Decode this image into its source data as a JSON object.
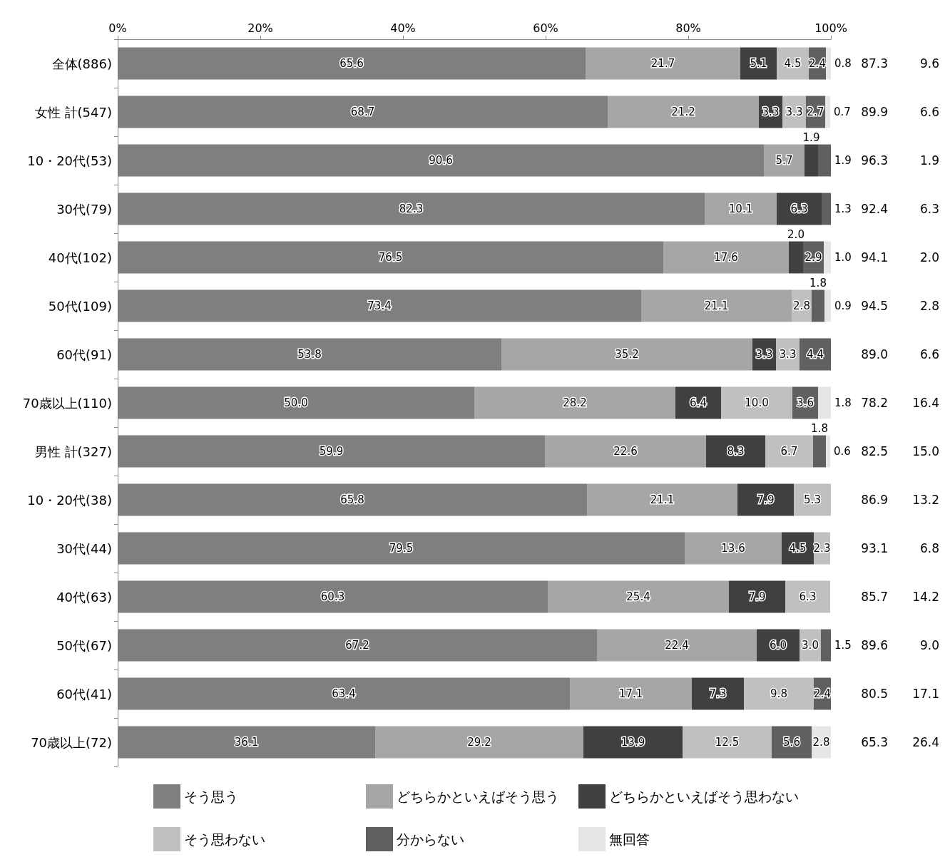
{
  "chart_data": {
    "type": "bar",
    "orientation": "horizontal",
    "stacked": true,
    "legend": "bottom",
    "grid": false,
    "categories": [
      "全体(886)",
      "女性 計(547)",
      "10・20代(53)",
      "30代(79)",
      "40代(102)",
      "50代(109)",
      "60代(91)",
      "70歳以上(110)",
      "男性 計(327)",
      "10・20代(38)",
      "30代(44)",
      "40代(63)",
      "50代(67)",
      "60代(41)",
      "70歳以上(72)"
    ],
    "xlim": [
      0,
      100
    ],
    "xticks": [
      {
        "value": 0,
        "label": "0%"
      },
      {
        "value": 20,
        "label": "20%"
      },
      {
        "value": 40,
        "label": "40%"
      },
      {
        "value": 60,
        "label": "60%"
      },
      {
        "value": 80,
        "label": "80%"
      },
      {
        "value": 100,
        "label": "100%"
      }
    ],
    "series": [
      {
        "name": "そう思う",
        "color": "#7f7f7f",
        "values": [
          65.6,
          68.7,
          90.6,
          82.3,
          76.5,
          73.4,
          53.8,
          50.0,
          59.9,
          65.8,
          79.5,
          60.3,
          67.2,
          63.4,
          36.1
        ],
        "value_labels": [
          "65.6",
          "68.7",
          "90.6",
          "82.3",
          "76.5",
          "73.4",
          "53.8",
          "50.0",
          "59.9",
          "65.8",
          "79.5",
          "60.3",
          "67.2",
          "63.4",
          "36.1"
        ]
      },
      {
        "name": "どちらかといえばそう思う",
        "color": "#a6a6a6",
        "values": [
          21.7,
          21.2,
          5.7,
          10.1,
          17.6,
          21.1,
          35.2,
          28.2,
          22.6,
          21.1,
          13.6,
          25.4,
          22.4,
          17.1,
          29.2
        ],
        "value_labels": [
          "21.7",
          "21.2",
          "5.7",
          "10.1",
          "17.6",
          "21.1",
          "35.2",
          "28.2",
          "22.6",
          "21.1",
          "13.6",
          "25.4",
          "22.4",
          "17.1",
          "29.2"
        ]
      },
      {
        "name": "どちらかといえばそう思わない",
        "color": "#404040",
        "values": [
          5.1,
          3.3,
          1.9,
          6.3,
          2.0,
          null,
          3.3,
          6.4,
          8.3,
          7.9,
          4.5,
          7.9,
          6.0,
          7.3,
          13.9
        ],
        "value_labels": [
          "5.1",
          "3.3",
          "1.9",
          "6.3",
          "2.0",
          null,
          "3.3",
          "6.4",
          "8.3",
          "7.9",
          "4.5",
          "7.9",
          "6.0",
          "7.3",
          "13.9"
        ]
      },
      {
        "name": "そう思わない",
        "color": "#c0c0c0",
        "values": [
          4.5,
          3.3,
          null,
          null,
          null,
          2.8,
          3.3,
          10.0,
          6.7,
          5.3,
          2.3,
          6.3,
          3.0,
          9.8,
          12.5
        ],
        "value_labels": [
          "4.5",
          "3.3",
          null,
          null,
          null,
          "2.8",
          "3.3",
          "10.0",
          "6.7",
          "5.3",
          "2.3",
          "6.3",
          "3.0",
          "9.8",
          "12.5"
        ]
      },
      {
        "name": "分からない",
        "color": "#606060",
        "values": [
          2.4,
          2.7,
          1.9,
          1.3,
          2.9,
          1.8,
          4.4,
          3.6,
          1.8,
          null,
          null,
          null,
          1.5,
          2.4,
          5.6
        ],
        "value_labels": [
          "2.4",
          "2.7",
          "1.9",
          "1.3",
          "2.9",
          "1.8",
          "4.4",
          "3.6",
          "1.8",
          null,
          null,
          null,
          "1.5",
          "2.4",
          "5.6"
        ]
      },
      {
        "name": "無回答",
        "color": "#e6e6e6",
        "values": [
          0.8,
          0.7,
          null,
          null,
          1.0,
          0.9,
          null,
          1.8,
          0.6,
          null,
          null,
          null,
          null,
          null,
          2.8
        ],
        "value_labels": [
          "0.8",
          "0.7",
          null,
          null,
          "1.0",
          "0.9",
          null,
          "1.8",
          "0.6",
          null,
          null,
          null,
          null,
          null,
          "2.8"
        ]
      }
    ],
    "annotations": [
      "87.3",
      "9.6",
      "89.9",
      "6.6",
      "96.3",
      "1.9",
      "92.4",
      "6.3",
      "94.1",
      "2.0",
      "94.5",
      "2.8",
      "89.0",
      "6.6",
      "78.2",
      "16.4",
      "82.5",
      "15.0",
      "86.9",
      "13.2",
      "93.1",
      "6.8",
      "85.7",
      "14.2",
      "89.6",
      "9.0",
      "80.5",
      "17.1",
      "65.3",
      "26.4"
    ]
  }
}
